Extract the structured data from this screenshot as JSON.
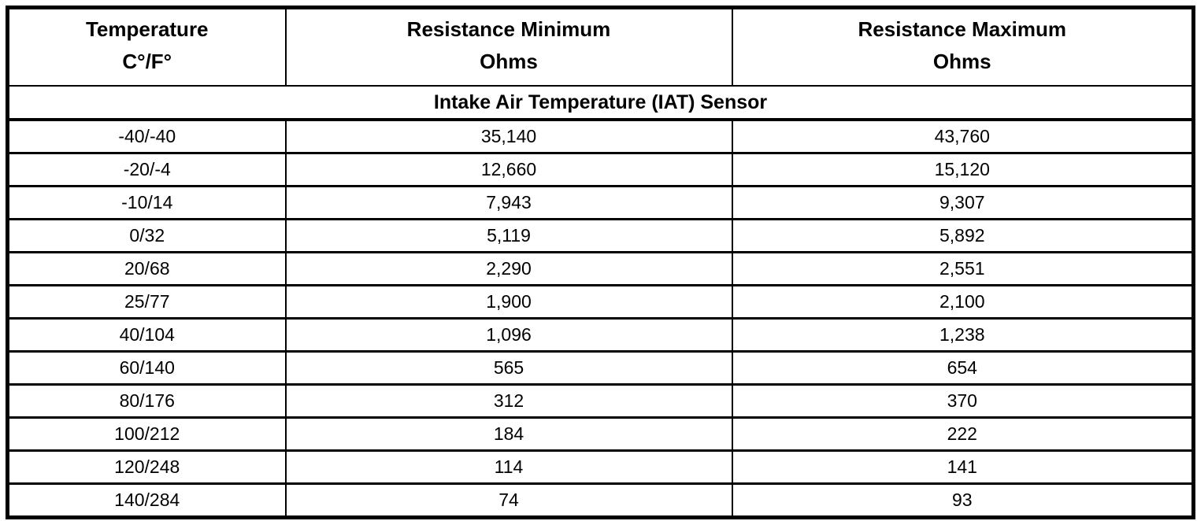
{
  "table": {
    "columns": [
      {
        "title": "Temperature",
        "unit": "C°/F°"
      },
      {
        "title": "Resistance Minimum",
        "unit": "Ohms"
      },
      {
        "title": "Resistance Maximum",
        "unit": "Ohms"
      }
    ],
    "section_title": "Intake Air Temperature (IAT) Sensor",
    "rows": [
      [
        "-40/-40",
        "35,140",
        "43,760"
      ],
      [
        "-20/-4",
        "12,660",
        "15,120"
      ],
      [
        "-10/14",
        "7,943",
        "9,307"
      ],
      [
        "0/32",
        "5,119",
        "5,892"
      ],
      [
        "20/68",
        "2,290",
        "2,551"
      ],
      [
        "25/77",
        "1,900",
        "2,100"
      ],
      [
        "40/104",
        "1,096",
        "1,238"
      ],
      [
        "60/140",
        "565",
        "654"
      ],
      [
        "80/176",
        "312",
        "370"
      ],
      [
        "100/212",
        "184",
        "222"
      ],
      [
        "120/248",
        "114",
        "141"
      ],
      [
        "140/284",
        "74",
        "93"
      ]
    ],
    "colors": {
      "border": "#000000",
      "text": "#000000",
      "background": "#ffffff"
    }
  }
}
